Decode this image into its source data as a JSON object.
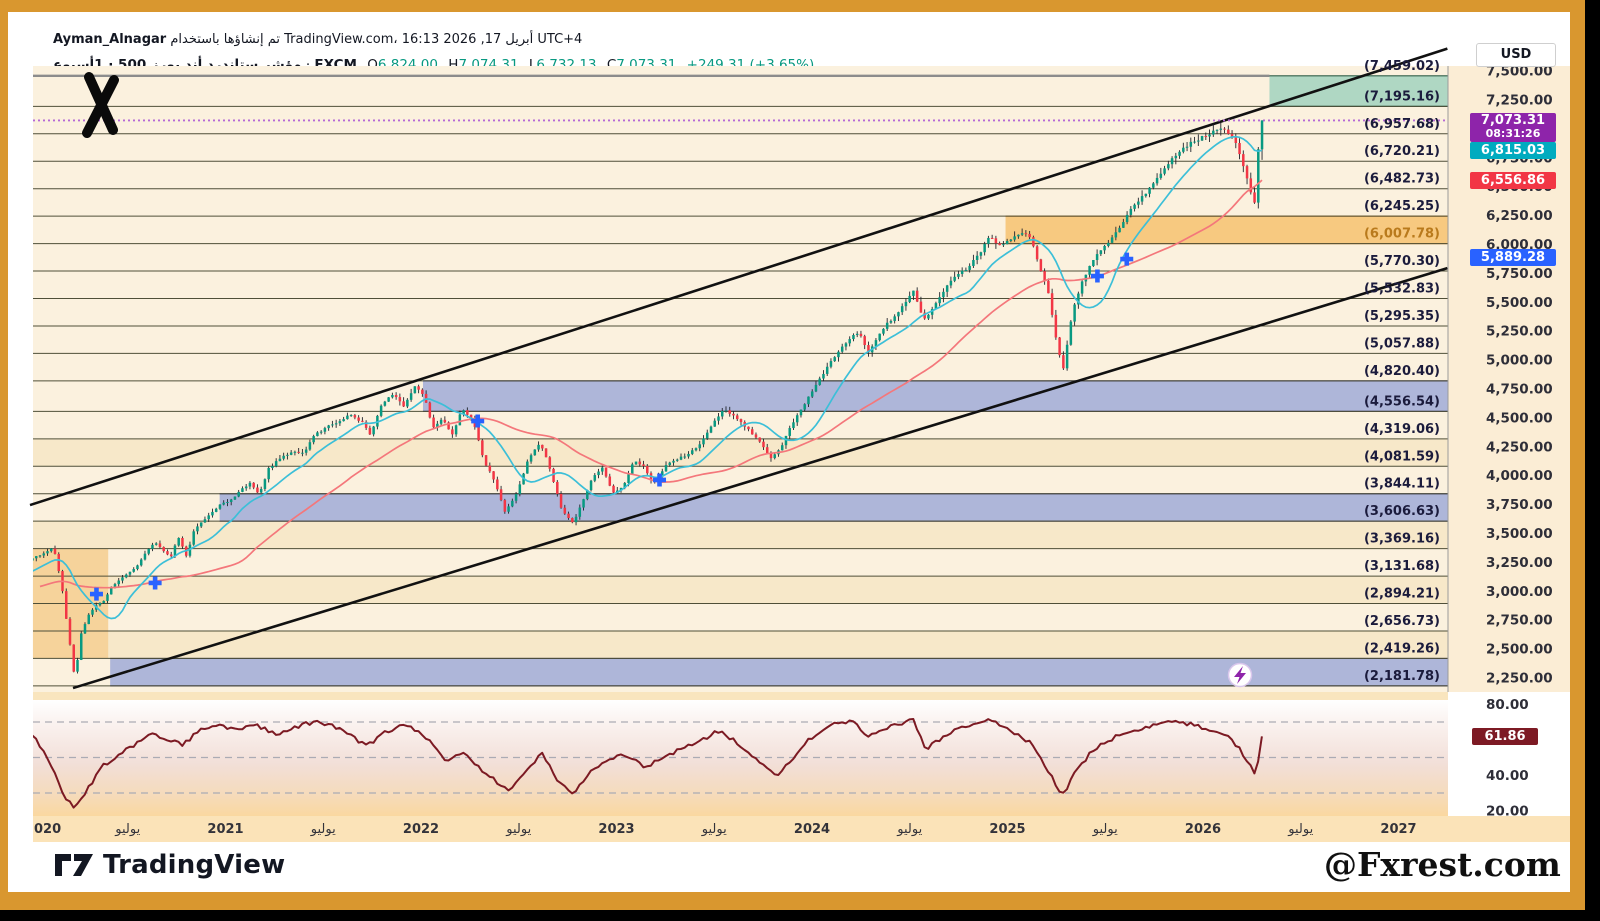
{
  "frame": {
    "border_color": "#D9972F"
  },
  "header": {
    "user": "Ayman_Alnagar",
    "attribution_ar": "تم إنشاؤها باستخدام",
    "site": "TradingView.com،",
    "datetime": "16:13 2026 ,17 أبريل UTC+4",
    "symbol_ar": "مؤشر ستاندرد أند بورز 500 · 1أسبوع",
    "separator": "·",
    "exchange": "FXCM",
    "ohlc": [
      {
        "k": "O",
        "v": "6,824.00"
      },
      {
        "k": "H",
        "v": "7,074.31"
      },
      {
        "k": "L",
        "v": "6,732.13"
      },
      {
        "k": "C",
        "v": "7,073.31"
      }
    ],
    "change": "+249.31 (+3.65%)"
  },
  "price_axis": {
    "currency": "USD"
  },
  "footer": {
    "brand": "TradingView",
    "watermark": "@Fxrest.com"
  },
  "chart_data": {
    "type": "candlestick+rsi",
    "symbol": "مؤشر ستاندرد أند بورز 500",
    "interval": "1أسبوع",
    "exchange": "FXCM",
    "last_bar": {
      "open": 6824.0,
      "high": 7074.31,
      "low": 6732.13,
      "close": 7073.31,
      "change": "+249.31 (+3.65%)"
    },
    "current_price": 7073.31,
    "x_range": [
      2020.0,
      2027.3
    ],
    "y_range": [
      2150,
      7560
    ],
    "colors": {
      "up": "#089981",
      "down": "#F23645",
      "wick": "#20242C",
      "ma_fast": "#3CBFD8",
      "ma_slow": "#F4777B",
      "rsi_line": "#7C1A23",
      "level_line": "#4F4F38",
      "level_text": "#1B1B3C",
      "level_text_orange": "#B97A1C",
      "bg_cream": "#FBF1DE",
      "bg_axis": "#FBEDD5",
      "bg_time": "#FBE3B8",
      "tint_peach": "#F7E8C9",
      "corner_orange": "#F6D39B"
    },
    "price_ticks": [
      {
        "v": 7500,
        "label": "7,500.00"
      },
      {
        "v": 7250,
        "label": "7,250.00"
      },
      {
        "v": 7000,
        "label": "7,000.00"
      },
      {
        "v": 6750,
        "label": "6,750.00"
      },
      {
        "v": 6500,
        "label": "6,500.00"
      },
      {
        "v": 6250,
        "label": "6,250.00"
      },
      {
        "v": 6000,
        "label": "6,000.00"
      },
      {
        "v": 5750,
        "label": "5,750.00"
      },
      {
        "v": 5500,
        "label": "5,500.00"
      },
      {
        "v": 5250,
        "label": "5,250.00"
      },
      {
        "v": 5000,
        "label": "5,000.00"
      },
      {
        "v": 4750,
        "label": "4,750.00"
      },
      {
        "v": 4500,
        "label": "4,500.00"
      },
      {
        "v": 4250,
        "label": "4,250.00"
      },
      {
        "v": 4000,
        "label": "4,000.00"
      },
      {
        "v": 3750,
        "label": "3,750.00"
      },
      {
        "v": 3500,
        "label": "3,500.00"
      },
      {
        "v": 3250,
        "label": "3,250.00"
      },
      {
        "v": 3000,
        "label": "3,000.00"
      },
      {
        "v": 2750,
        "label": "2,750.00"
      },
      {
        "v": 2500,
        "label": "2,500.00"
      },
      {
        "v": 2250,
        "label": "2,250.00"
      }
    ],
    "levels": [
      {
        "v": 7459.02,
        "label": "(7,459.02)",
        "gray": true
      },
      {
        "v": 7195.16,
        "label": "(7,195.16)"
      },
      {
        "v": 6957.68,
        "label": "(6,957.68)"
      },
      {
        "v": 6720.21,
        "label": "(6,720.21)"
      },
      {
        "v": 6482.73,
        "label": "(6,482.73)"
      },
      {
        "v": 6245.25,
        "label": "(6,245.25)"
      },
      {
        "v": 6007.78,
        "label": "(6,007.78)",
        "orange": true
      },
      {
        "v": 5770.3,
        "label": "(5,770.30)"
      },
      {
        "v": 5532.83,
        "label": "(5,532.83)"
      },
      {
        "v": 5295.35,
        "label": "(5,295.35)"
      },
      {
        "v": 5057.88,
        "label": "(5,057.88)"
      },
      {
        "v": 4820.4,
        "label": "(4,820.40)"
      },
      {
        "v": 4556.54,
        "label": "(4,556.54)"
      },
      {
        "v": 4319.06,
        "label": "(4,319.06)"
      },
      {
        "v": 4081.59,
        "label": "(4,081.59)"
      },
      {
        "v": 3844.11,
        "label": "(3,844.11)"
      },
      {
        "v": 3606.63,
        "label": "(3,606.63)"
      },
      {
        "v": 3369.16,
        "label": "(3,369.16)"
      },
      {
        "v": 3131.68,
        "label": "(3,131.68)"
      },
      {
        "v": 2894.21,
        "label": "(2,894.21)"
      },
      {
        "v": 2656.73,
        "label": "(2,656.73)"
      },
      {
        "v": 2419.26,
        "label": "(2,419.26)"
      },
      {
        "v": 2181.78,
        "label": "(2,181.78)"
      }
    ],
    "bands": [
      {
        "name": "target-zone-green",
        "from": 7459.02,
        "to": 7195.16,
        "start": 2026.34,
        "fill": "#AFD7C3",
        "stroke": "#2F5F49"
      },
      {
        "name": "supply-zone-orange",
        "from": 6245.25,
        "to": 6007.78,
        "start": 2024.99,
        "fill": "#F7C980",
        "stroke": "#C98A2E"
      },
      {
        "name": "zone-blue-1",
        "from": 4820.4,
        "to": 4556.54,
        "start": 2022.01,
        "fill": "#AEB6D9",
        "stroke": "#40406E"
      },
      {
        "name": "zone-blue-2",
        "from": 3844.11,
        "to": 3606.63,
        "start": 2020.97,
        "fill": "#AEB6D9",
        "stroke": "#40406E"
      },
      {
        "name": "zone-blue-3",
        "from": 2419.26,
        "to": 2181.78,
        "start": 2020.41,
        "fill": "#AEB6D9",
        "stroke": "#40406E"
      }
    ],
    "tint_zones": [
      [
        4319.06,
        4081.59
      ],
      [
        3606.63,
        3369.16
      ],
      [
        3131.68,
        2894.21
      ],
      [
        2656.73,
        2419.26
      ]
    ],
    "corner_zone": {
      "t_from": 2020.015,
      "t_to": 2020.4,
      "from": 3369.16,
      "to": 2419.26
    },
    "channel": {
      "upper": [
        [
          2020.0,
          3746
        ],
        [
          2027.25,
          7694
        ]
      ],
      "lower": [
        [
          2020.22,
          2163
        ],
        [
          2027.25,
          5796
        ]
      ]
    },
    "price_tags": [
      {
        "name": "current",
        "text": "7,073.31",
        "sub": "08:31:26",
        "color": "#8E24AA"
      },
      {
        "name": "ma-fast",
        "text": "6,815.03",
        "value": 6815.03,
        "color": "#00ABBF"
      },
      {
        "name": "ma-slow",
        "text": "6,556.86",
        "value": 6556.86,
        "color": "#F23645"
      },
      {
        "name": "alert",
        "text": "5,889.28",
        "value": 5889.28,
        "color": "#2962FF"
      }
    ],
    "markers_cross": [
      [
        2020.34,
        2976
      ],
      [
        2020.64,
        3072
      ],
      [
        2022.29,
        4473
      ],
      [
        2023.22,
        3963
      ],
      [
        2025.46,
        5727
      ],
      [
        2025.61,
        5874
      ]
    ],
    "price_path": [
      [
        2019.15,
        2890
      ],
      [
        2019.4,
        2950
      ],
      [
        2019.6,
        3000
      ],
      [
        2019.8,
        3090
      ],
      [
        2019.95,
        3230
      ],
      [
        2020.02,
        3290
      ],
      [
        2020.08,
        3330
      ],
      [
        2020.12,
        3380
      ],
      [
        2020.16,
        3080
      ],
      [
        2020.19,
        2710
      ],
      [
        2020.21,
        2480
      ],
      [
        2020.23,
        2230
      ],
      [
        2020.26,
        2630
      ],
      [
        2020.3,
        2800
      ],
      [
        2020.34,
        2880
      ],
      [
        2020.38,
        2920
      ],
      [
        2020.42,
        3050
      ],
      [
        2020.46,
        3100
      ],
      [
        2020.5,
        3160
      ],
      [
        2020.55,
        3220
      ],
      [
        2020.6,
        3350
      ],
      [
        2020.64,
        3430
      ],
      [
        2020.68,
        3350
      ],
      [
        2020.72,
        3300
      ],
      [
        2020.76,
        3470
      ],
      [
        2020.8,
        3300
      ],
      [
        2020.84,
        3540
      ],
      [
        2020.9,
        3630
      ],
      [
        2020.97,
        3750
      ],
      [
        2021.03,
        3790
      ],
      [
        2021.08,
        3880
      ],
      [
        2021.13,
        3940
      ],
      [
        2021.17,
        3830
      ],
      [
        2021.22,
        4060
      ],
      [
        2021.28,
        4150
      ],
      [
        2021.34,
        4210
      ],
      [
        2021.4,
        4200
      ],
      [
        2021.46,
        4360
      ],
      [
        2021.52,
        4420
      ],
      [
        2021.58,
        4470
      ],
      [
        2021.64,
        4530
      ],
      [
        2021.7,
        4460
      ],
      [
        2021.74,
        4350
      ],
      [
        2021.8,
        4620
      ],
      [
        2021.86,
        4710
      ],
      [
        2021.91,
        4600
      ],
      [
        2021.97,
        4780
      ],
      [
        2022.02,
        4680
      ],
      [
        2022.06,
        4410
      ],
      [
        2022.11,
        4500
      ],
      [
        2022.16,
        4350
      ],
      [
        2022.21,
        4590
      ],
      [
        2022.27,
        4460
      ],
      [
        2022.32,
        4130
      ],
      [
        2022.37,
        3980
      ],
      [
        2022.43,
        3680
      ],
      [
        2022.49,
        3850
      ],
      [
        2022.55,
        4150
      ],
      [
        2022.61,
        4290
      ],
      [
        2022.66,
        4060
      ],
      [
        2022.72,
        3700
      ],
      [
        2022.78,
        3590
      ],
      [
        2022.83,
        3790
      ],
      [
        2022.88,
        4000
      ],
      [
        2022.93,
        4070
      ],
      [
        2022.98,
        3840
      ],
      [
        2023.04,
        3920
      ],
      [
        2023.09,
        4130
      ],
      [
        2023.14,
        4080
      ],
      [
        2023.19,
        3920
      ],
      [
        2023.25,
        4090
      ],
      [
        2023.31,
        4140
      ],
      [
        2023.37,
        4190
      ],
      [
        2023.43,
        4280
      ],
      [
        2023.49,
        4450
      ],
      [
        2023.55,
        4580
      ],
      [
        2023.61,
        4500
      ],
      [
        2023.67,
        4410
      ],
      [
        2023.73,
        4300
      ],
      [
        2023.79,
        4150
      ],
      [
        2023.84,
        4240
      ],
      [
        2023.89,
        4420
      ],
      [
        2023.95,
        4590
      ],
      [
        2024.01,
        4760
      ],
      [
        2024.07,
        4920
      ],
      [
        2024.13,
        5060
      ],
      [
        2024.19,
        5180
      ],
      [
        2024.24,
        5250
      ],
      [
        2024.29,
        5060
      ],
      [
        2024.35,
        5250
      ],
      [
        2024.41,
        5360
      ],
      [
        2024.47,
        5480
      ],
      [
        2024.52,
        5610
      ],
      [
        2024.57,
        5350
      ],
      [
        2024.62,
        5450
      ],
      [
        2024.68,
        5620
      ],
      [
        2024.74,
        5730
      ],
      [
        2024.8,
        5800
      ],
      [
        2024.86,
        5930
      ],
      [
        2024.91,
        6070
      ],
      [
        2024.96,
        5990
      ],
      [
        2025.02,
        6040
      ],
      [
        2025.07,
        6110
      ],
      [
        2025.12,
        6060
      ],
      [
        2025.17,
        5780
      ],
      [
        2025.21,
        5570
      ],
      [
        2025.25,
        5160
      ],
      [
        2025.285,
        4930
      ],
      [
        2025.33,
        5400
      ],
      [
        2025.38,
        5670
      ],
      [
        2025.43,
        5850
      ],
      [
        2025.48,
        5960
      ],
      [
        2025.54,
        6060
      ],
      [
        2025.59,
        6190
      ],
      [
        2025.64,
        6330
      ],
      [
        2025.7,
        6430
      ],
      [
        2025.76,
        6560
      ],
      [
        2025.82,
        6690
      ],
      [
        2025.88,
        6810
      ],
      [
        2025.94,
        6880
      ],
      [
        2026.0,
        6930
      ],
      [
        2026.05,
        6970
      ],
      [
        2026.1,
        7000
      ],
      [
        2026.14,
        6960
      ],
      [
        2026.18,
        6830
      ],
      [
        2026.22,
        6610
      ],
      [
        2026.25,
        6400
      ],
      [
        2026.27,
        6330
      ],
      [
        2026.283,
        6824
      ],
      [
        2026.302,
        7073.31
      ]
    ],
    "rsi": {
      "last": 61.86,
      "last_label": "61.86",
      "ticks": [
        {
          "v": 80,
          "label": "80.00"
        },
        {
          "v": 40,
          "label": "40.00"
        },
        {
          "v": 20,
          "label": "20.00"
        }
      ],
      "guide_levels": [
        70,
        50,
        30
      ],
      "path": [
        [
          2020.02,
          62
        ],
        [
          2020.08,
          52
        ],
        [
          2020.13,
          40
        ],
        [
          2020.18,
          28
        ],
        [
          2020.23,
          21
        ],
        [
          2020.3,
          33
        ],
        [
          2020.38,
          46
        ],
        [
          2020.46,
          52
        ],
        [
          2020.55,
          58
        ],
        [
          2020.62,
          64
        ],
        [
          2020.7,
          60
        ],
        [
          2020.78,
          57
        ],
        [
          2020.86,
          65
        ],
        [
          2020.95,
          68
        ],
        [
          2021.05,
          66
        ],
        [
          2021.15,
          69
        ],
        [
          2021.25,
          63
        ],
        [
          2021.35,
          67
        ],
        [
          2021.45,
          70
        ],
        [
          2021.55,
          68
        ],
        [
          2021.63,
          64
        ],
        [
          2021.72,
          56
        ],
        [
          2021.8,
          63
        ],
        [
          2021.9,
          68
        ],
        [
          2021.97,
          66
        ],
        [
          2022.05,
          58
        ],
        [
          2022.13,
          47
        ],
        [
          2022.21,
          53
        ],
        [
          2022.3,
          44
        ],
        [
          2022.38,
          37
        ],
        [
          2022.45,
          31
        ],
        [
          2022.55,
          45
        ],
        [
          2022.62,
          52
        ],
        [
          2022.7,
          37
        ],
        [
          2022.78,
          29
        ],
        [
          2022.86,
          41
        ],
        [
          2022.95,
          48
        ],
        [
          2023.05,
          52
        ],
        [
          2023.14,
          44
        ],
        [
          2023.22,
          49
        ],
        [
          2023.32,
          54
        ],
        [
          2023.42,
          59
        ],
        [
          2023.52,
          65
        ],
        [
          2023.6,
          60
        ],
        [
          2023.68,
          52
        ],
        [
          2023.76,
          44
        ],
        [
          2023.82,
          40
        ],
        [
          2023.88,
          46
        ],
        [
          2023.95,
          57
        ],
        [
          2024.03,
          64
        ],
        [
          2024.12,
          69
        ],
        [
          2024.2,
          71
        ],
        [
          2024.28,
          62
        ],
        [
          2024.36,
          66
        ],
        [
          2024.45,
          69
        ],
        [
          2024.52,
          72
        ],
        [
          2024.58,
          54
        ],
        [
          2024.66,
          61
        ],
        [
          2024.74,
          66
        ],
        [
          2024.82,
          69
        ],
        [
          2024.9,
          71
        ],
        [
          2024.97,
          68
        ],
        [
          2025.05,
          63
        ],
        [
          2025.12,
          58
        ],
        [
          2025.19,
          46
        ],
        [
          2025.25,
          34
        ],
        [
          2025.285,
          29
        ],
        [
          2025.35,
          43
        ],
        [
          2025.43,
          53
        ],
        [
          2025.52,
          60
        ],
        [
          2025.6,
          64
        ],
        [
          2025.68,
          66
        ],
        [
          2025.76,
          68
        ],
        [
          2025.84,
          71
        ],
        [
          2025.92,
          69
        ],
        [
          2026.0,
          67
        ],
        [
          2026.08,
          65
        ],
        [
          2026.14,
          61
        ],
        [
          2026.2,
          53
        ],
        [
          2026.25,
          44
        ],
        [
          2026.27,
          38
        ],
        [
          2026.302,
          61.86
        ]
      ]
    },
    "time_ticks": [
      {
        "t": 2020.0,
        "label": "020",
        "bold": true,
        "clip": true
      },
      {
        "t": 2020.5,
        "label": "يوليو"
      },
      {
        "t": 2021.0,
        "label": "2021",
        "bold": true
      },
      {
        "t": 2021.5,
        "label": "يوليو"
      },
      {
        "t": 2022.0,
        "label": "2022",
        "bold": true
      },
      {
        "t": 2022.5,
        "label": "يوليو"
      },
      {
        "t": 2023.0,
        "label": "2023",
        "bold": true
      },
      {
        "t": 2023.5,
        "label": "يوليو"
      },
      {
        "t": 2024.0,
        "label": "2024",
        "bold": true
      },
      {
        "t": 2024.5,
        "label": "يوليو"
      },
      {
        "t": 2025.0,
        "label": "2025",
        "bold": true
      },
      {
        "t": 2025.5,
        "label": "يوليو"
      },
      {
        "t": 2026.0,
        "label": "2026",
        "bold": true
      },
      {
        "t": 2026.5,
        "label": "يوليو"
      },
      {
        "t": 2027.0,
        "label": "2027",
        "bold": true
      }
    ]
  }
}
